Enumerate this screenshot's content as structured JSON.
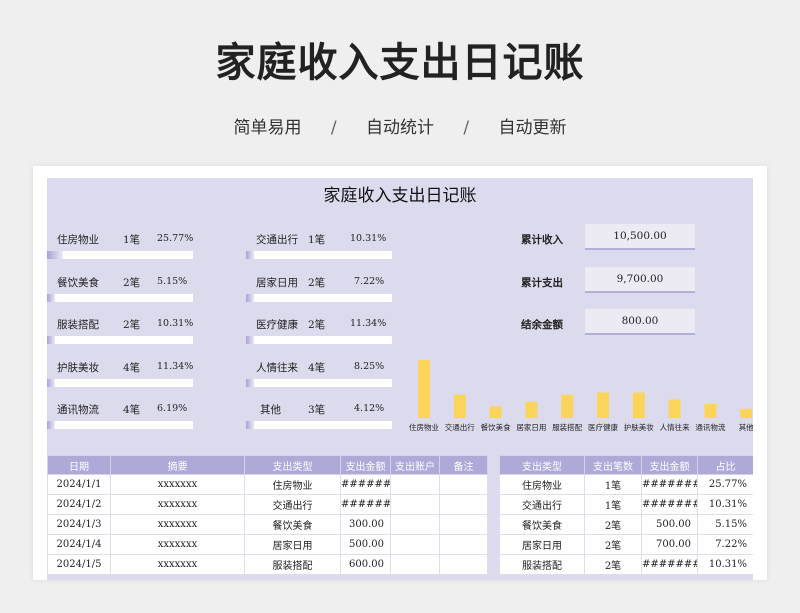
{
  "hero": {
    "title": "家庭收入支出日记账",
    "sub1": "简单易用",
    "sep": "/",
    "sub2": "自动统计",
    "sub3": "自动更新"
  },
  "sheet": {
    "title": "家庭收入支出日记账"
  },
  "categories": [
    {
      "name": "住房物业",
      "count": "1笔",
      "pct": "25.77%",
      "ratio": 0.26
    },
    {
      "name": "餐饮美食",
      "count": "2笔",
      "pct": "5.15%",
      "ratio": 0.05
    },
    {
      "name": "服装搭配",
      "count": "2笔",
      "pct": "10.31%",
      "ratio": 0.1
    },
    {
      "name": "护肤美妆",
      "count": "4笔",
      "pct": "11.34%",
      "ratio": 0.11
    },
    {
      "name": "通讯物流",
      "count": "4笔",
      "pct": "6.19%",
      "ratio": 0.06
    },
    {
      "name": "交通出行",
      "count": "1笔",
      "pct": "10.31%",
      "ratio": 0.1
    },
    {
      "name": "居家日用",
      "count": "2笔",
      "pct": "7.22%",
      "ratio": 0.07
    },
    {
      "name": "医疗健康",
      "count": "2笔",
      "pct": "11.34%",
      "ratio": 0.11
    },
    {
      "name": "人情往来",
      "count": "4笔",
      "pct": "8.25%",
      "ratio": 0.08
    },
    {
      "name": "其他",
      "count": "3笔",
      "pct": "4.12%",
      "ratio": 0.04
    }
  ],
  "summary": {
    "income_label": "累计收入",
    "income_value": "10,500.00",
    "expense_label": "累计支出",
    "expense_value": "9,700.00",
    "balance_label": "结余金额",
    "balance_value": "800.00"
  },
  "chart_data": {
    "type": "bar",
    "categories": [
      "住房物业",
      "交通出行",
      "餐饮美食",
      "居家日用",
      "服装搭配",
      "医疗健康",
      "护肤美妆",
      "人情往来",
      "通讯物流",
      "其他"
    ],
    "values": [
      25.77,
      10.31,
      5.15,
      7.22,
      10.31,
      11.34,
      11.34,
      8.25,
      6.19,
      4.12
    ],
    "bar_color": "#fbd55a",
    "grid": false
  },
  "ledger": {
    "headers": [
      "日期",
      "摘要",
      "支出类型",
      "支出金额",
      "支出账户",
      "备注"
    ],
    "rows": [
      [
        "2024/1/1",
        "xxxxxxx",
        "住房物业",
        "#########",
        "",
        ""
      ],
      [
        "2024/1/2",
        "xxxxxxx",
        "交通出行",
        "#########",
        "",
        ""
      ],
      [
        "2024/1/3",
        "xxxxxxx",
        "餐饮美食",
        "300.00",
        "",
        ""
      ],
      [
        "2024/1/4",
        "xxxxxxx",
        "居家日用",
        "500.00",
        "",
        ""
      ],
      [
        "2024/1/5",
        "xxxxxxx",
        "服装搭配",
        "600.00",
        "",
        ""
      ]
    ]
  },
  "stats": {
    "headers": [
      "支出类型",
      "支出笔数",
      "支出金额",
      "占比"
    ],
    "rows": [
      [
        "住房物业",
        "1笔",
        "#########",
        "25.77%"
      ],
      [
        "交通出行",
        "1笔",
        "#########",
        "10.31%"
      ],
      [
        "餐饮美食",
        "2笔",
        "500.00",
        "5.15%"
      ],
      [
        "居家日用",
        "2笔",
        "700.00",
        "7.22%"
      ],
      [
        "服装搭配",
        "2笔",
        "#########",
        "10.31%"
      ]
    ]
  }
}
